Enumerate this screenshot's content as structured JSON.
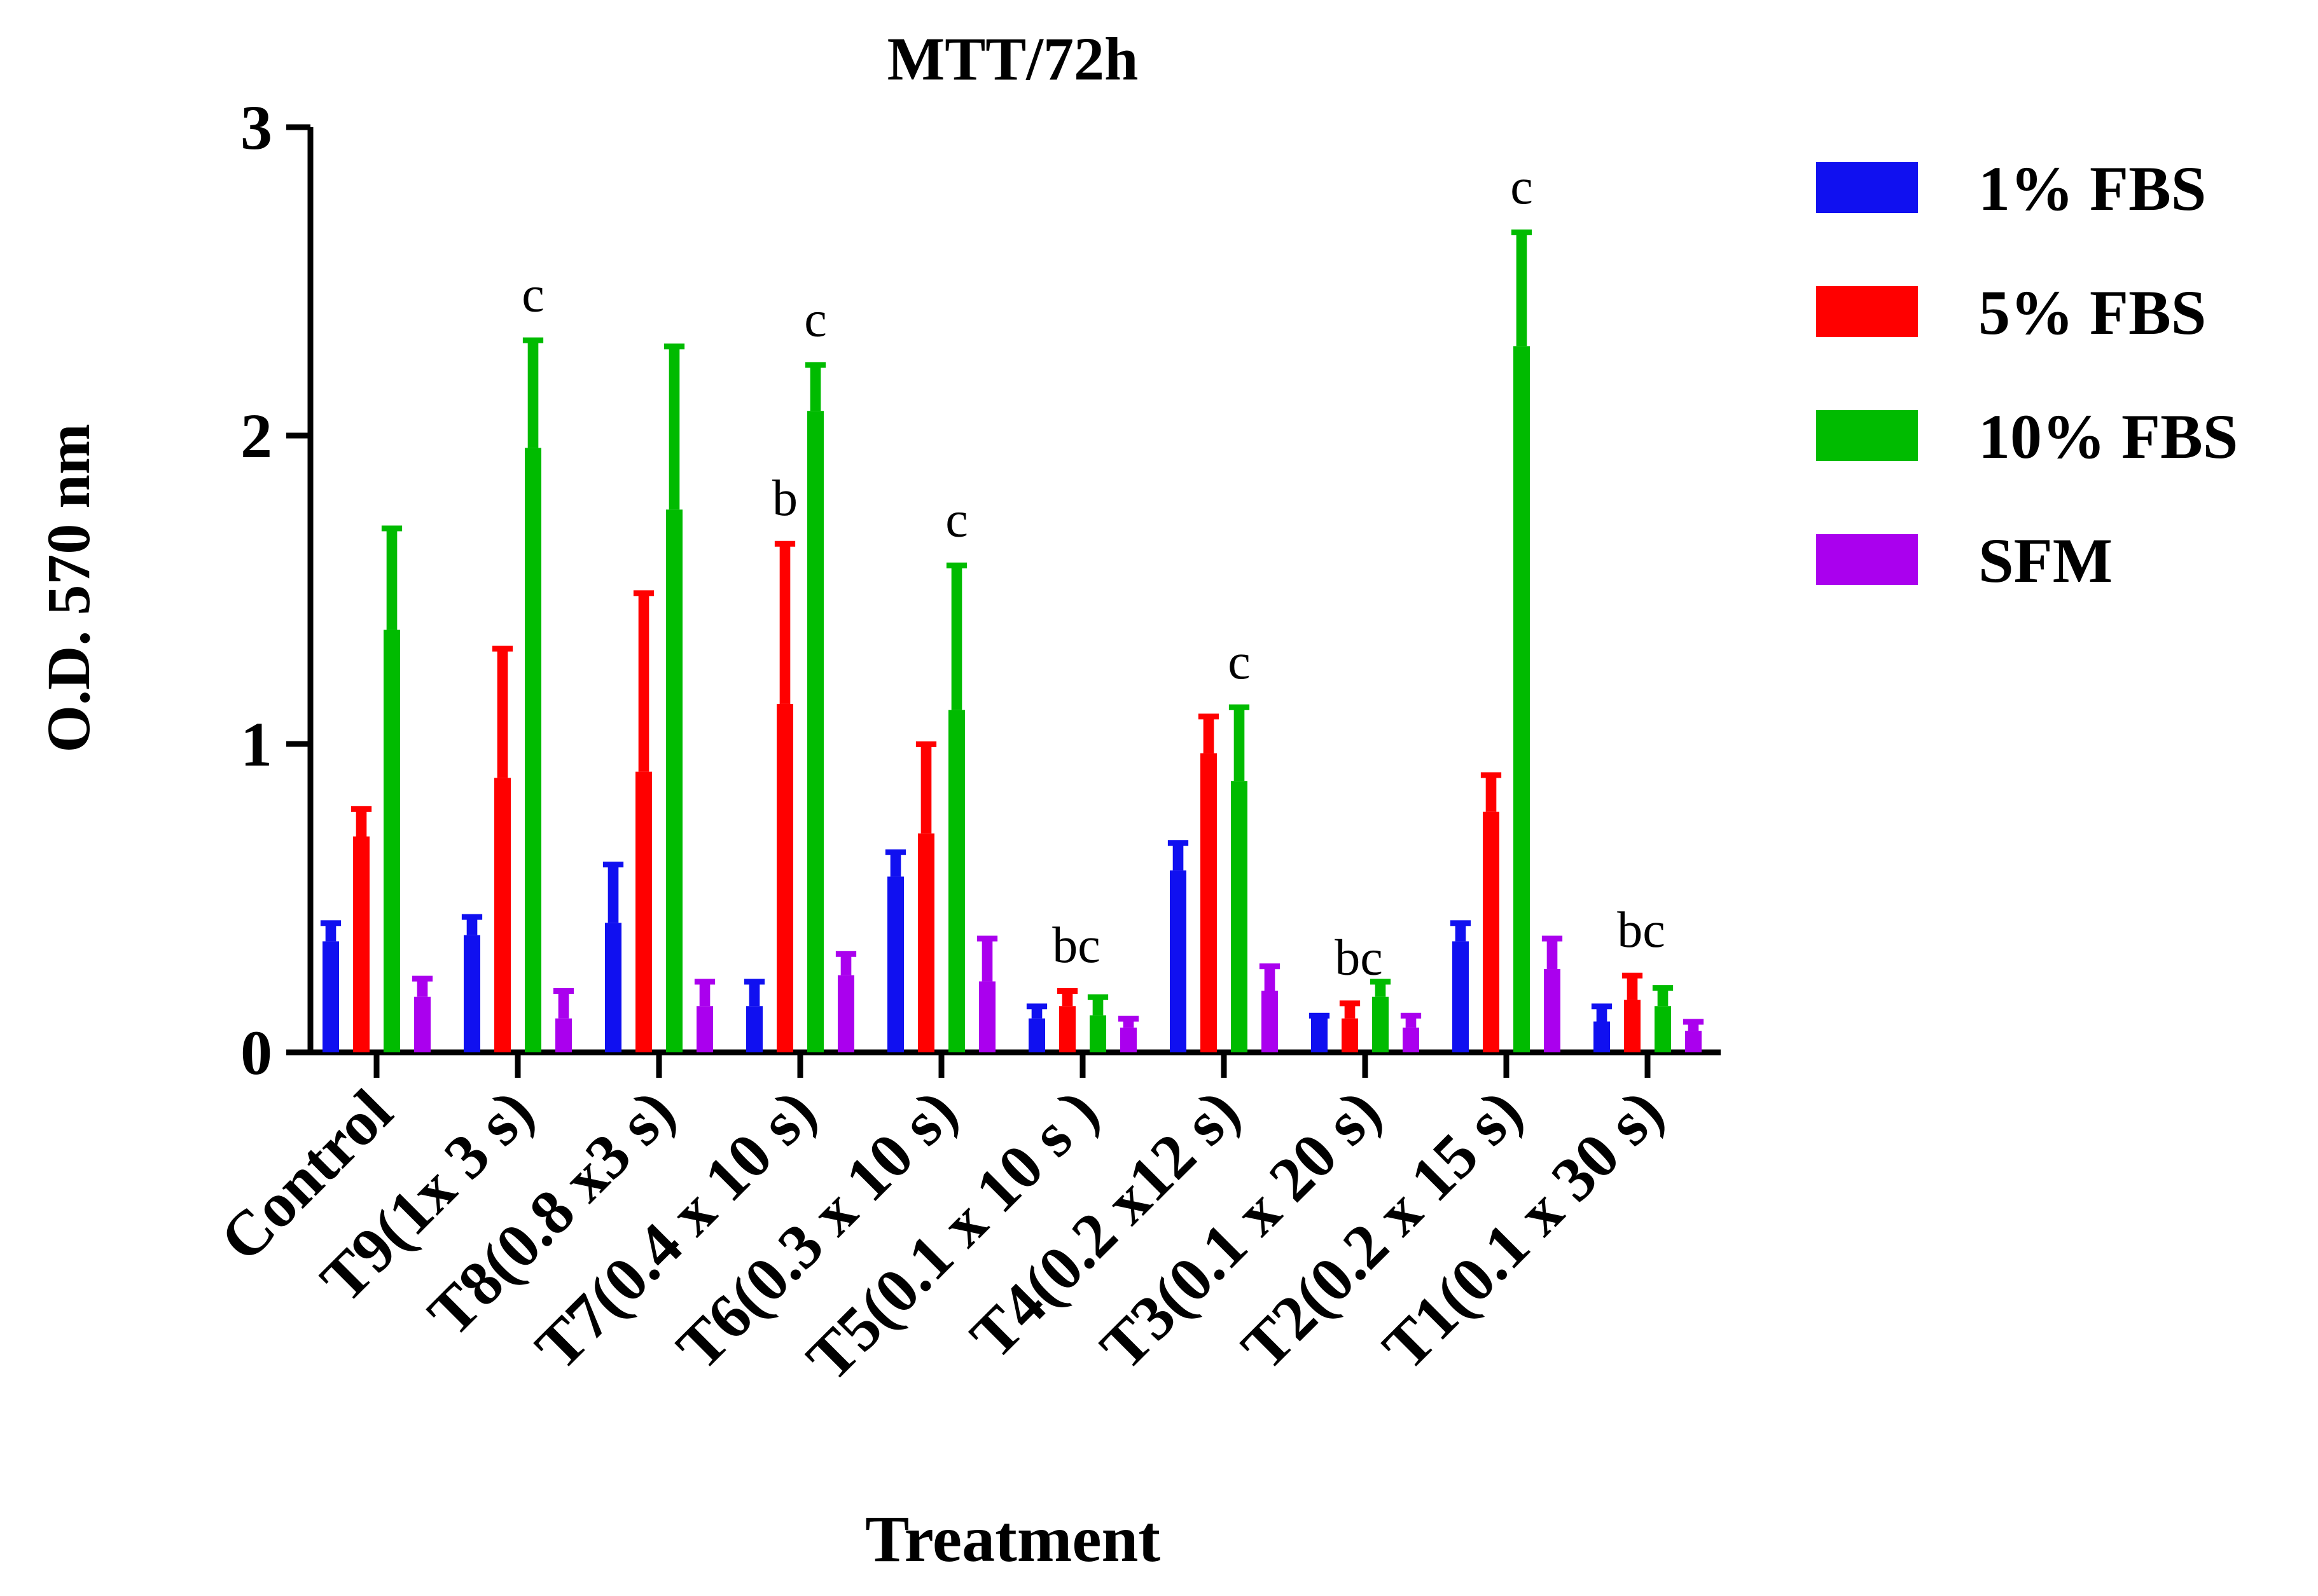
{
  "chart_data": {
    "type": "bar",
    "title": "MTT/72h",
    "xlabel": "Treatment",
    "ylabel": "O.D. 570 nm",
    "ylim": [
      0,
      3
    ],
    "yticks": [
      "0",
      "1",
      "2",
      "3"
    ],
    "grid": false,
    "legend_position": "right",
    "categories": [
      "Control",
      "T9(1x 3 s)",
      "T8(0.8 x3 s)",
      "T7(0.4 x 10 s)",
      "T6(0.3 x 10 s)",
      "T5(0.1 x 10 s )",
      "T4(0.2 x12 s)",
      "T3(0.1 x 20 s)",
      "T2(0.2 x 15 s)",
      "T1(0.1 x 30 s)"
    ],
    "series": [
      {
        "name": "1% FBS",
        "color": "#1010f0",
        "values": [
          0.42,
          0.44,
          0.61,
          0.23,
          0.65,
          0.15,
          0.68,
          0.12,
          0.42,
          0.15
        ],
        "error_low": [
          0.36,
          0.38,
          0.42,
          0.15,
          0.57,
          0.11,
          0.59,
          0.12,
          0.36,
          0.1
        ]
      },
      {
        "name": "5% FBS",
        "color": "#ff0000",
        "values": [
          0.79,
          1.31,
          1.49,
          1.65,
          1.0,
          0.2,
          1.09,
          0.16,
          0.9,
          0.25
        ],
        "error_low": [
          0.7,
          0.89,
          0.91,
          1.13,
          0.71,
          0.15,
          0.97,
          0.11,
          0.78,
          0.17
        ]
      },
      {
        "name": "10% FBS",
        "color": "#00bb00",
        "values": [
          1.7,
          2.31,
          2.29,
          2.23,
          1.58,
          0.18,
          1.12,
          0.23,
          2.66,
          0.21
        ],
        "error_low": [
          1.37,
          1.96,
          1.76,
          2.08,
          1.11,
          0.12,
          0.88,
          0.18,
          2.29,
          0.15
        ]
      },
      {
        "name": "SFM",
        "color": "#aa00ee",
        "values": [
          0.24,
          0.2,
          0.23,
          0.32,
          0.37,
          0.11,
          0.28,
          0.12,
          0.37,
          0.1
        ],
        "error_low": [
          0.18,
          0.11,
          0.15,
          0.25,
          0.23,
          0.08,
          0.2,
          0.08,
          0.27,
          0.07
        ]
      }
    ],
    "annotations": [
      {
        "category": "T9(1x 3 s)",
        "series": "10% FBS",
        "text": "c"
      },
      {
        "category": "T7(0.4 x 10 s)",
        "series": "5% FBS",
        "text": "b"
      },
      {
        "category": "T7(0.4 x 10 s)",
        "series": "10% FBS",
        "text": "c"
      },
      {
        "category": "T6(0.3 x 10 s)",
        "series": "10% FBS",
        "text": "c"
      },
      {
        "category": "T5(0.1 x 10 s )",
        "series": "5% FBS",
        "text": "bc"
      },
      {
        "category": "T4(0.2 x12 s)",
        "series": "10% FBS",
        "text": "c"
      },
      {
        "category": "T3(0.1 x 20 s)",
        "series": "5% FBS",
        "text": "bc"
      },
      {
        "category": "T2(0.2 x 15 s)",
        "series": "10% FBS",
        "text": "c"
      },
      {
        "category": "T1(0.1 x 30 s)",
        "series": "5% FBS",
        "text": "bc"
      }
    ]
  }
}
